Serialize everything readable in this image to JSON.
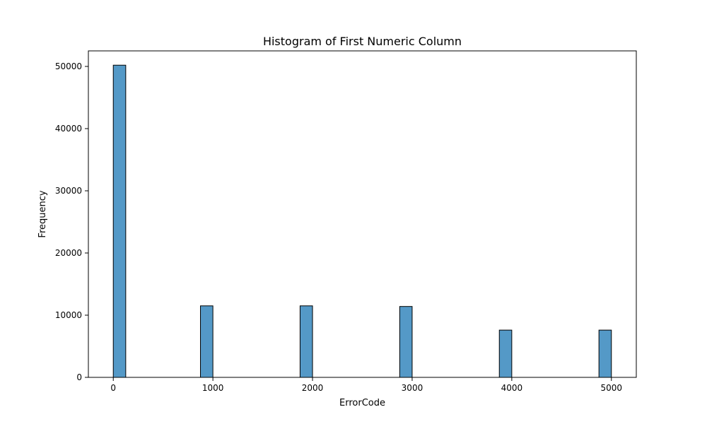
{
  "chart_data": {
    "type": "bar",
    "title": "Histogram of First Numeric Column",
    "xlabel": "ErrorCode",
    "ylabel": "Frequency",
    "xlim": [
      -250,
      5250
    ],
    "ylim": [
      0,
      52500
    ],
    "bin_width": 125,
    "bars": [
      {
        "x0": 0,
        "x1": 125,
        "value": 50200
      },
      {
        "x0": 875,
        "x1": 1000,
        "value": 11500
      },
      {
        "x0": 1875,
        "x1": 2000,
        "value": 11500
      },
      {
        "x0": 2875,
        "x1": 3000,
        "value": 11400
      },
      {
        "x0": 3875,
        "x1": 4000,
        "value": 7600
      },
      {
        "x0": 4875,
        "x1": 5000,
        "value": 7600
      }
    ],
    "xticks": [
      0,
      1000,
      2000,
      3000,
      4000,
      5000
    ],
    "yticks": [
      0,
      10000,
      20000,
      30000,
      40000,
      50000
    ],
    "bar_color": "#5499c7",
    "grid": false,
    "legend": false
  }
}
